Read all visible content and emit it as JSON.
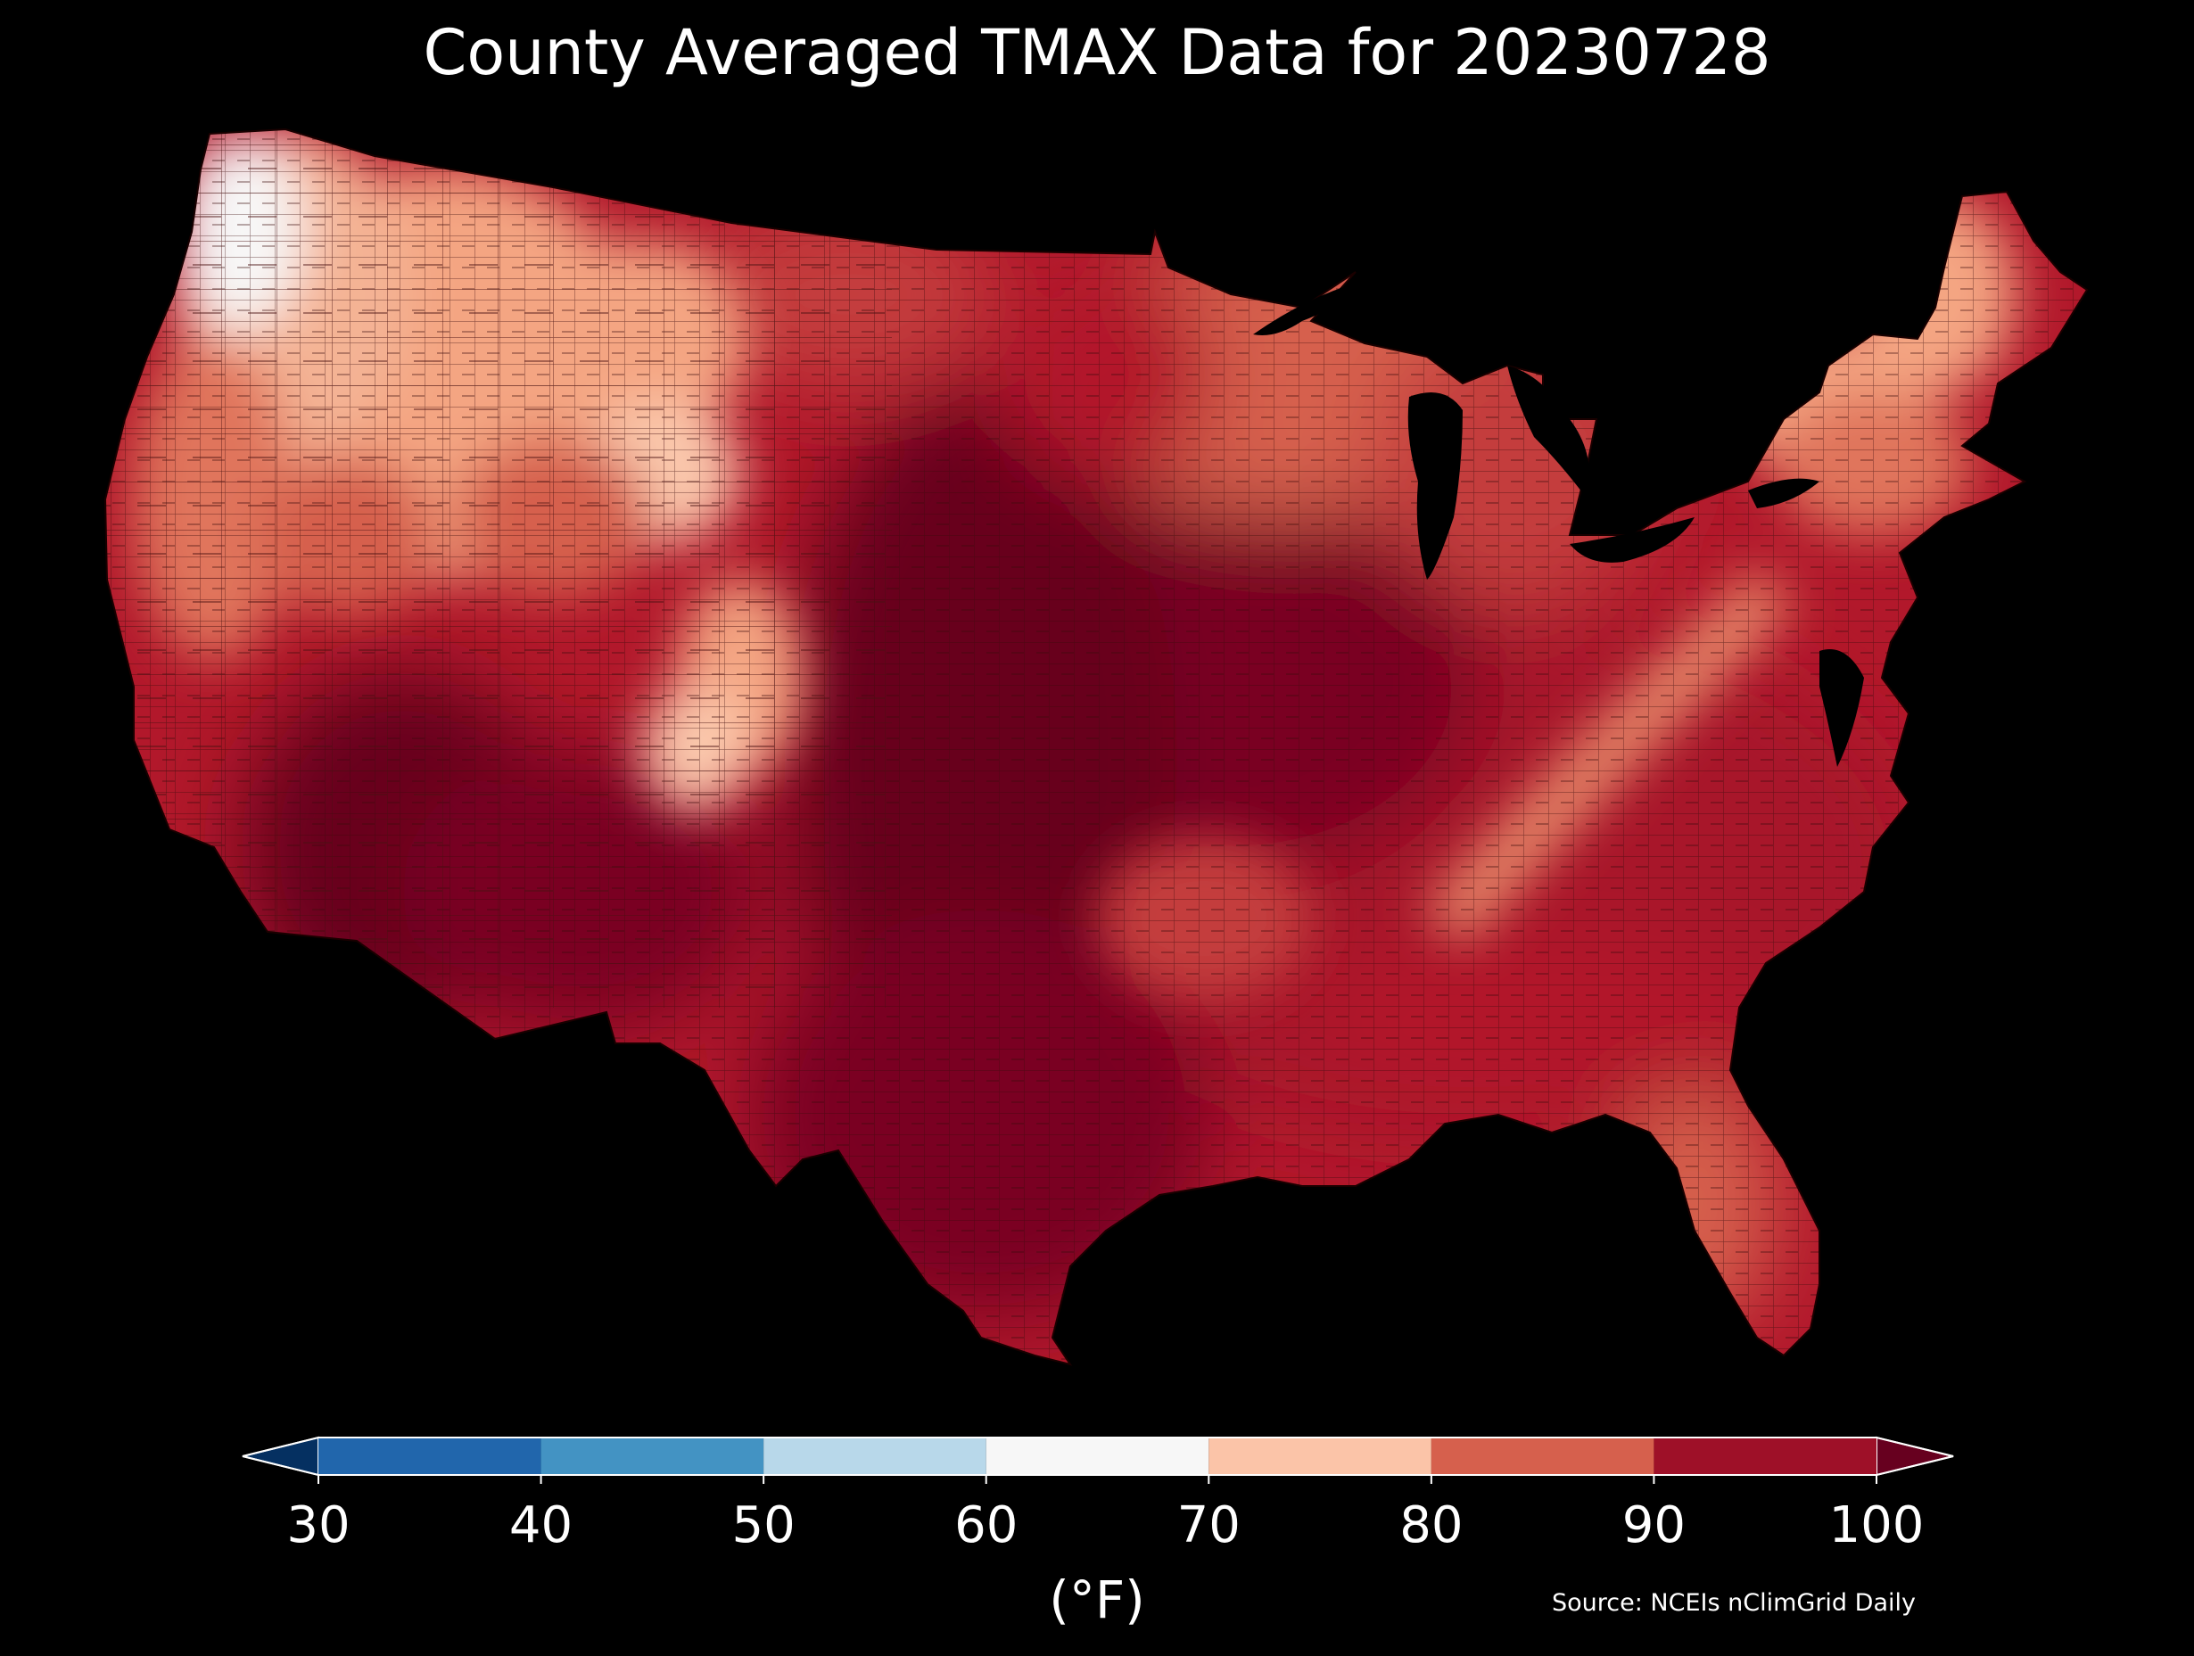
{
  "title": "County Averaged TMAX Data for 20230728",
  "map": {
    "region": "Contiguous United States, county-level",
    "variable": "TMAX",
    "background_color": "#000000",
    "county_border_color": "#3a0a0a",
    "regions": [
      {
        "name": "pacific-northwest",
        "bin": "60-70",
        "color": "#f7f7f7"
      },
      {
        "name": "northern-rockies",
        "bin": "70-80",
        "color": "#f4a582"
      },
      {
        "name": "colorado-rockies",
        "bin": "70-80",
        "color": "#fbc9ad"
      },
      {
        "name": "northern-plains",
        "bin": "80-90",
        "color": "#d6604d"
      },
      {
        "name": "northeast",
        "bin": "70-80",
        "color": "#f4a582"
      },
      {
        "name": "appalachians",
        "bin": "80-90",
        "color": "#e0745c"
      },
      {
        "name": "great-lakes",
        "bin": "80-90",
        "color": "#c43c3c"
      },
      {
        "name": "midwest",
        "bin": "90-100",
        "color": "#a8162c"
      },
      {
        "name": "southeast",
        "bin": "90-100",
        "color": "#b2182b"
      },
      {
        "name": "central-plains",
        "bin": "above-100",
        "color": "#67001f"
      },
      {
        "name": "desert-southwest",
        "bin": "above-100",
        "color": "#67001f"
      },
      {
        "name": "texas",
        "bin": "above-100",
        "color": "#7a0622"
      },
      {
        "name": "florida",
        "bin": "80-90",
        "color": "#d6604d"
      }
    ]
  },
  "colorbar": {
    "units": "(°F)",
    "ticks": [
      "30",
      "40",
      "50",
      "60",
      "70",
      "80",
      "90",
      "100"
    ],
    "extend": "both",
    "under_color": "#053061",
    "over_color": "#67001f",
    "bins": [
      {
        "range": [
          30,
          40
        ],
        "color": "#2166ac"
      },
      {
        "range": [
          40,
          50
        ],
        "color": "#4393c3"
      },
      {
        "range": [
          50,
          60
        ],
        "color": "#b8d8ea"
      },
      {
        "range": [
          60,
          70
        ],
        "color": "#f7f7f7"
      },
      {
        "range": [
          70,
          80
        ],
        "color": "#fbc4a8"
      },
      {
        "range": [
          80,
          90
        ],
        "color": "#d6604d"
      },
      {
        "range": [
          90,
          100
        ],
        "color": "#9e1028"
      }
    ]
  },
  "source": "Source: NCEIs nClimGrid Daily"
}
